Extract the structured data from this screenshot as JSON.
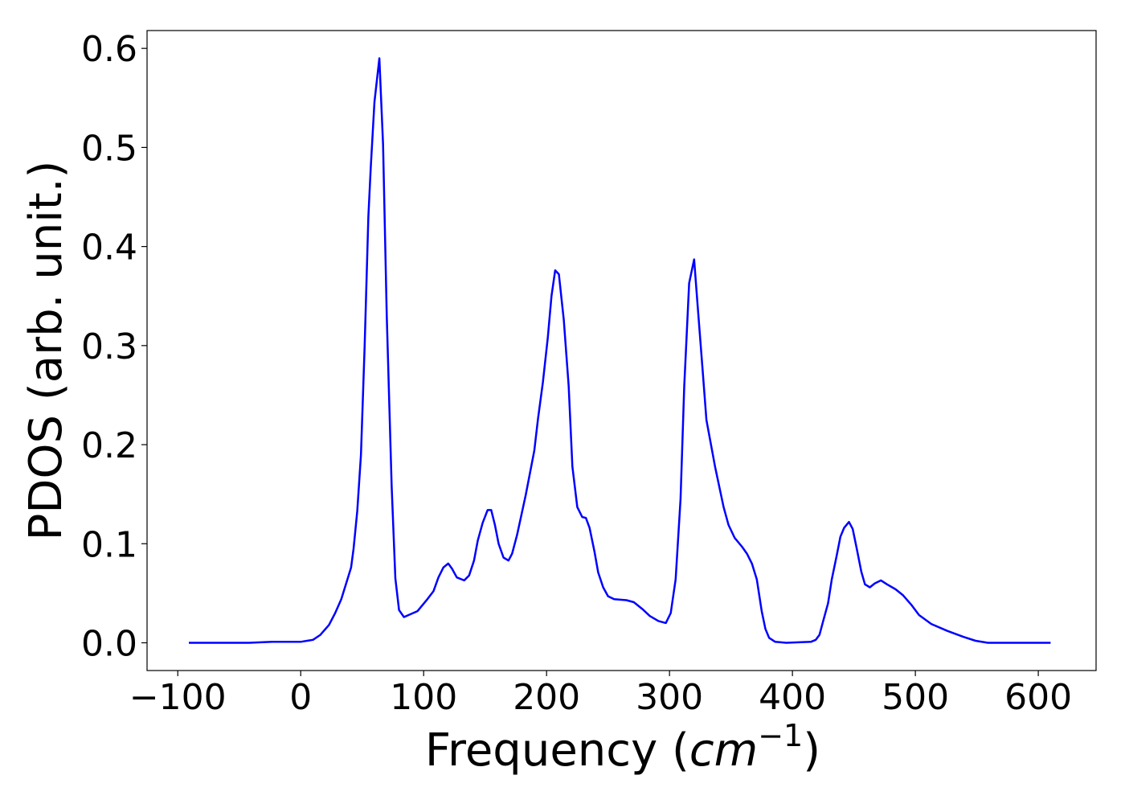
{
  "chart_data": {
    "type": "line",
    "xlabel": [
      "Frequency (",
      "cm",
      "−1",
      ")"
    ],
    "ylabel": "PDOS (arb. unit.)",
    "xlim": [
      -125,
      647
    ],
    "ylim": [
      -0.028,
      0.618
    ],
    "xticks": [
      {
        "value": -100,
        "label": "−100"
      },
      0,
      100,
      200,
      300,
      400,
      500,
      600
    ],
    "yticks": [
      {
        "value": 0,
        "label": "0.0"
      },
      0.1,
      0.2,
      0.3,
      0.4,
      0.5,
      0.6
    ],
    "series": [
      {
        "color": "#0000ff",
        "x": [
          -91,
          -42,
          -23,
          0,
          10,
          16,
          23,
          28,
          33,
          37,
          41,
          43,
          46,
          49,
          52,
          55,
          57,
          60,
          64,
          67,
          70,
          74,
          77,
          80,
          84,
          95,
          103,
          108,
          112,
          116,
          120,
          123,
          127,
          133,
          137,
          141,
          144,
          148,
          152,
          155,
          158,
          161,
          165,
          169,
          172,
          176,
          183,
          190,
          193,
          197,
          201,
          204,
          207,
          210,
          214,
          218,
          221,
          225,
          229,
          232,
          235,
          239,
          242,
          246,
          250,
          255,
          265,
          271,
          278,
          284,
          291,
          297,
          301,
          305,
          309,
          312,
          316,
          320,
          323,
          327,
          330,
          337,
          344,
          348,
          353,
          359,
          363,
          367,
          371,
          375,
          378,
          381,
          386,
          395,
          415,
          419,
          422,
          425,
          429,
          432,
          436,
          439,
          442,
          446,
          449,
          452,
          456,
          459,
          463,
          467,
          472,
          477,
          484,
          490,
          497,
          503,
          513,
          526,
          539,
          549,
          559,
          610
        ],
        "values": [
          0,
          0,
          0.001,
          0.001,
          0.003,
          0.008,
          0.018,
          0.03,
          0.044,
          0.06,
          0.076,
          0.095,
          0.133,
          0.19,
          0.3,
          0.43,
          0.48,
          0.546,
          0.59,
          0.503,
          0.33,
          0.158,
          0.065,
          0.033,
          0.026,
          0.032,
          0.044,
          0.052,
          0.066,
          0.076,
          0.08,
          0.075,
          0.066,
          0.063,
          0.068,
          0.083,
          0.103,
          0.121,
          0.134,
          0.134,
          0.119,
          0.1,
          0.086,
          0.083,
          0.09,
          0.109,
          0.149,
          0.194,
          0.226,
          0.263,
          0.308,
          0.35,
          0.376,
          0.372,
          0.326,
          0.259,
          0.178,
          0.137,
          0.127,
          0.126,
          0.116,
          0.092,
          0.071,
          0.056,
          0.047,
          0.044,
          0.043,
          0.041,
          0.034,
          0.027,
          0.022,
          0.02,
          0.03,
          0.064,
          0.145,
          0.259,
          0.363,
          0.387,
          0.339,
          0.274,
          0.225,
          0.178,
          0.137,
          0.119,
          0.106,
          0.097,
          0.09,
          0.08,
          0.064,
          0.032,
          0.014,
          0.005,
          0.001,
          0,
          0.001,
          0.003,
          0.008,
          0.022,
          0.04,
          0.064,
          0.088,
          0.107,
          0.116,
          0.122,
          0.115,
          0.097,
          0.072,
          0.059,
          0.056,
          0.06,
          0.063,
          0.059,
          0.054,
          0.048,
          0.038,
          0.028,
          0.019,
          0.012,
          0.006,
          0.002,
          0,
          0
        ]
      }
    ]
  }
}
